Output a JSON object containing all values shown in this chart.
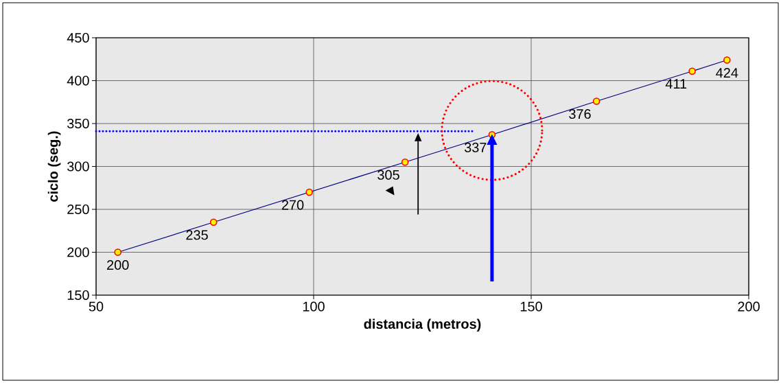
{
  "chart_data": {
    "type": "line",
    "xlabel": "distancia (metros)",
    "ylabel": "ciclo (seg.)",
    "xlim": [
      50,
      200
    ],
    "xticks": [
      50,
      100,
      150,
      200
    ],
    "ylim": [
      150,
      450
    ],
    "yticks": [
      150,
      200,
      250,
      300,
      350,
      400,
      450
    ],
    "grid": true,
    "marker": "circle",
    "line_style": "solid",
    "series": [
      {
        "color": "#000080",
        "x": [
          55,
          77,
          99,
          121,
          141,
          165,
          187,
          195
        ],
        "values": [
          200,
          235,
          270,
          305,
          337,
          376,
          411,
          424
        ],
        "value_labels": [
          "200",
          "235",
          "270",
          "305",
          "337",
          "376",
          "411",
          "424"
        ]
      },
      {
        "color": "#0000ff",
        "x": [
          50,
          137
        ],
        "values": [
          341,
          341
        ],
        "marker": "none",
        "line_style": "dotted"
      }
    ]
  }
}
